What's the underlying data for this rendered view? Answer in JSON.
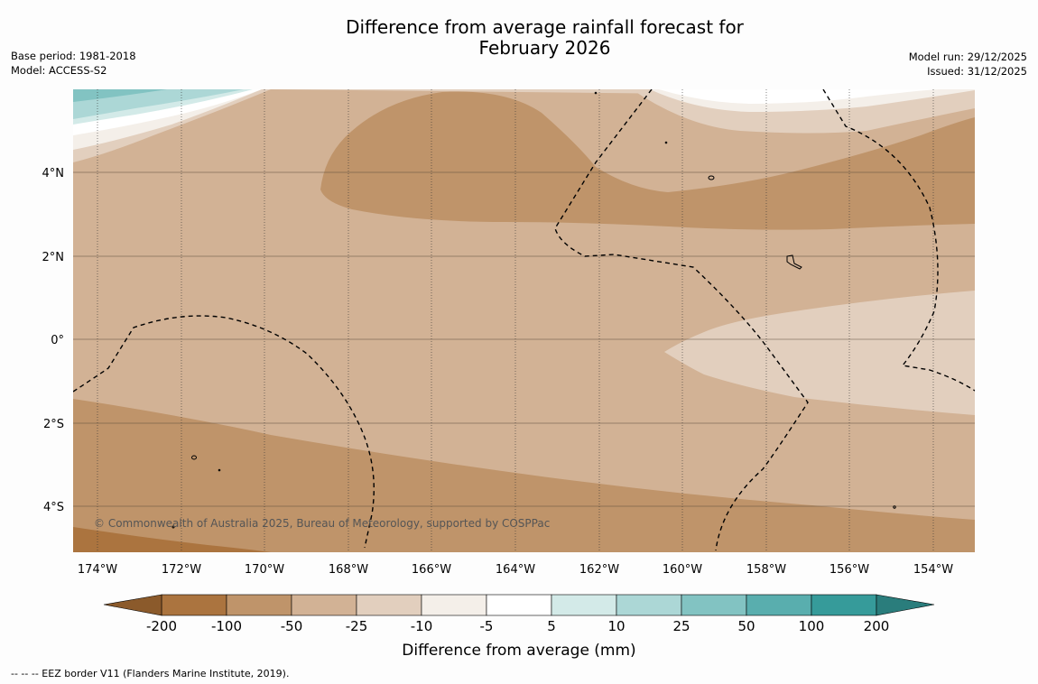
{
  "title_line1": "Difference from average rainfall forecast for",
  "title_line2": "February 2026",
  "base_period": "Base period: 1981-2018",
  "model": "Model: ACCESS-S2",
  "model_run": "Model run: 29/12/2025",
  "issued": "Issued: 31/12/2025",
  "copyright": "© Commonwealth of Australia 2025, Bureau of Meteorology, supported by COSPPac",
  "footnote": "--  --  -- EEZ border V11 (Flanders Marine Institute, 2019).",
  "x_ticks": [
    "174°W",
    "172°W",
    "170°W",
    "168°W",
    "166°W",
    "164°W",
    "162°W",
    "160°W",
    "158°W",
    "156°W",
    "154°W"
  ],
  "y_ticks": [
    "4°N",
    "2°N",
    "0°",
    "2°S",
    "4°S"
  ],
  "colorbar": {
    "title": "Difference from average (mm)",
    "labels": [
      "-200",
      "-100",
      "-50",
      "-25",
      "-10",
      "-5",
      "5",
      "10",
      "25",
      "50",
      "100",
      "200"
    ],
    "colors": [
      "#ab743f",
      "#bf946a",
      "#d2b295",
      "#e2cfbe",
      "#f4efe9",
      "#ffffff",
      "#d3eae8",
      "#acd7d6",
      "#82c3c2",
      "#59aeae",
      "#369b9a"
    ],
    "under_color": "#8b5a2b",
    "over_color": "#2a7d7c"
  },
  "chart_data": {
    "type": "filled-contour map",
    "title": "Difference from average rainfall forecast for February 2026",
    "xlabel": "",
    "ylabel": "",
    "xlim": [
      -174.6,
      -153.1
    ],
    "ylim": [
      -5.2,
      5.9
    ],
    "units": "mm",
    "levels": [
      -200,
      -100,
      -50,
      -25,
      -10,
      -5,
      5,
      10,
      25,
      50,
      100,
      200
    ],
    "overlay": "EEZ border V11 (dashed)"
  }
}
